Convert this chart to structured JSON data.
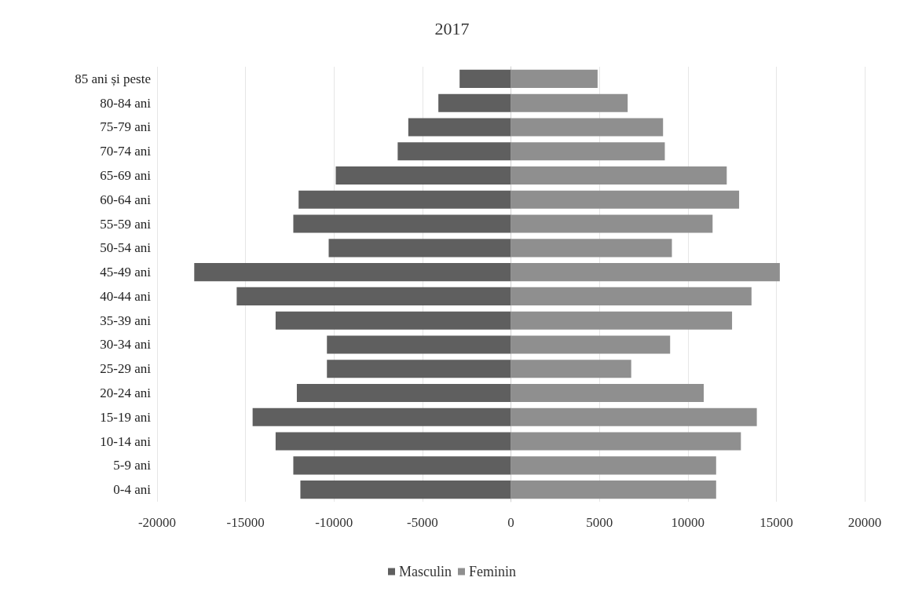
{
  "chart_data": {
    "type": "bar",
    "title": "2017",
    "orientation": "horizontal",
    "stacked": true,
    "categories": [
      "85 ani și peste",
      "80-84 ani",
      "75-79 ani",
      "70-74 ani",
      "65-69 ani",
      "60-64 ani",
      "55-59 ani",
      "50-54 ani",
      "45-49 ani",
      "40-44 ani",
      "35-39 ani",
      "30-34 ani",
      "25-29 ani",
      "20-24 ani",
      "15-19 ani",
      "10-14 ani",
      "5-9 ani",
      "0-4 ani"
    ],
    "series": [
      {
        "name": "Masculin",
        "color": "#5f5f5f",
        "values": [
          -2900,
          -4100,
          -5800,
          -6400,
          -9900,
          -12000,
          -12300,
          -10300,
          -17900,
          -15500,
          -13300,
          -10400,
          -10400,
          -12100,
          -14600,
          -13300,
          -12300,
          -11900
        ]
      },
      {
        "name": "Feminin",
        "color": "#8f8f8f",
        "values": [
          4900,
          6600,
          8600,
          8700,
          12200,
          12900,
          11400,
          9100,
          15200,
          13600,
          12500,
          9000,
          6800,
          10900,
          13900,
          13000,
          11600,
          11600
        ]
      }
    ],
    "xlim": [
      -20000,
      20000
    ],
    "xticks": [
      -20000,
      -15000,
      -10000,
      -5000,
      0,
      5000,
      10000,
      15000,
      20000
    ],
    "grid": "x",
    "legend": "bottom"
  }
}
